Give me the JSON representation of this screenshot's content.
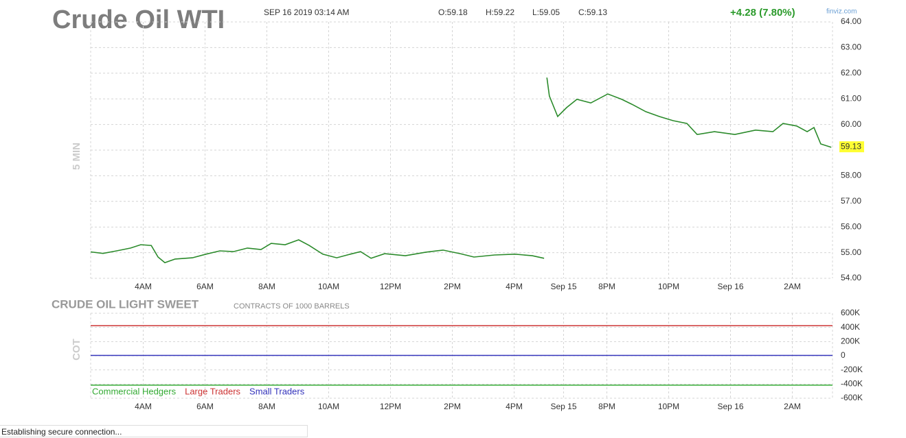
{
  "chart_data": [
    {
      "type": "line",
      "title": "Crude Oil WTI",
      "timestamp": "SEP 16 2019 03:14 AM",
      "ohlc": [
        "O:59.18",
        "H:59.22",
        "L:59.05",
        "C:59.13"
      ],
      "change": "+4.28 (7.80%)",
      "source": "finviz.com",
      "timeframe": "5 MIN",
      "last_price": 59.13,
      "xlim": [
        2.3,
        26.3
      ],
      "ylim": [
        54,
        64
      ],
      "xticks": [
        {
          "value": 4,
          "label": "4AM"
        },
        {
          "value": 6,
          "label": "6AM"
        },
        {
          "value": 8,
          "label": "8AM"
        },
        {
          "value": 10,
          "label": "10AM"
        },
        {
          "value": 12,
          "label": "12PM"
        },
        {
          "value": 14,
          "label": "2PM"
        },
        {
          "value": 16,
          "label": "4PM"
        },
        {
          "value": 17.6,
          "label": "Sep 15"
        },
        {
          "value": 19,
          "label": "8PM"
        },
        {
          "value": 21,
          "label": "10PM"
        },
        {
          "value": 23,
          "label": "Sep 16"
        },
        {
          "value": 25,
          "label": "2AM"
        }
      ],
      "yticks": [
        {
          "value": 64,
          "label": "64.00"
        },
        {
          "value": 63,
          "label": "63.00"
        },
        {
          "value": 62,
          "label": "62.00"
        },
        {
          "value": 61,
          "label": "61.00"
        },
        {
          "value": 60,
          "label": "60.00"
        },
        {
          "value": 59,
          "label": "59.00"
        },
        {
          "value": 58,
          "label": "58.00"
        },
        {
          "value": 57,
          "label": "57.00"
        },
        {
          "value": 56,
          "label": "56.00"
        },
        {
          "value": 55,
          "label": "55.00"
        },
        {
          "value": 54,
          "label": "54.00"
        }
      ],
      "grid": true,
      "series": [
        {
          "name": "Crude Oil WTI",
          "color": "#2a8a2a",
          "x": [
            2.3,
            2.7,
            3.14,
            3.59,
            3.92,
            4.26,
            4.48,
            4.7,
            5.03,
            5.59,
            6.03,
            6.48,
            6.92,
            7.37,
            7.81,
            8.14,
            8.59,
            9.03,
            9.37,
            9.81,
            10.26,
            10.7,
            11.03,
            11.37,
            11.81,
            12.48,
            13.14,
            13.7,
            14.26,
            14.7,
            15.37,
            16.03,
            16.59,
            16.97,
            17.0,
            17.06,
            17.14,
            17.41,
            17.7,
            18.03,
            18.48,
            19.03,
            19.48,
            19.81,
            20.26,
            20.7,
            21.14,
            21.59,
            21.92,
            22.48,
            23.14,
            23.81,
            24.37,
            24.7,
            25.14,
            25.48,
            25.7,
            25.92,
            26.26
          ],
          "values": [
            55.03,
            54.97,
            55.07,
            55.18,
            55.31,
            55.28,
            54.83,
            54.61,
            54.75,
            54.8,
            54.94,
            55.07,
            55.04,
            55.18,
            55.12,
            55.36,
            55.31,
            55.5,
            55.28,
            54.94,
            54.8,
            54.94,
            55.04,
            54.78,
            54.96,
            54.88,
            55.02,
            55.1,
            54.96,
            54.83,
            54.91,
            54.94,
            54.88,
            54.78,
            null,
            61.83,
            61.11,
            60.31,
            60.66,
            60.98,
            60.84,
            61.19,
            60.98,
            60.79,
            60.5,
            60.31,
            60.15,
            60.04,
            59.61,
            59.72,
            59.61,
            59.78,
            59.72,
            60.04,
            59.94,
            59.72,
            59.88,
            59.24,
            59.11
          ]
        }
      ]
    },
    {
      "type": "hline",
      "title": "CRUDE OIL LIGHT SWEET",
      "subtitle": "CONTRACTS OF 1000 BARRELS",
      "ylabel": "COT",
      "ylim": [
        -600000,
        600000
      ],
      "yticks": [
        {
          "value": 600000,
          "label": "600K"
        },
        {
          "value": 400000,
          "label": "400K"
        },
        {
          "value": 200000,
          "label": "200K"
        },
        0,
        {
          "value": -200000,
          "label": "-200K"
        },
        {
          "value": -400000,
          "label": "-400K"
        },
        {
          "value": -600000,
          "label": "-600K"
        }
      ],
      "series": [
        {
          "name": "Commercial Hedgers",
          "color": "#33aa33",
          "value": -415000
        },
        {
          "name": "Large Traders",
          "color": "#cc3333",
          "value": 425000
        },
        {
          "name": "Small Traders",
          "color": "#3333bb",
          "value": 5000
        }
      ]
    }
  ],
  "status_bar": "Establishing secure connection..."
}
